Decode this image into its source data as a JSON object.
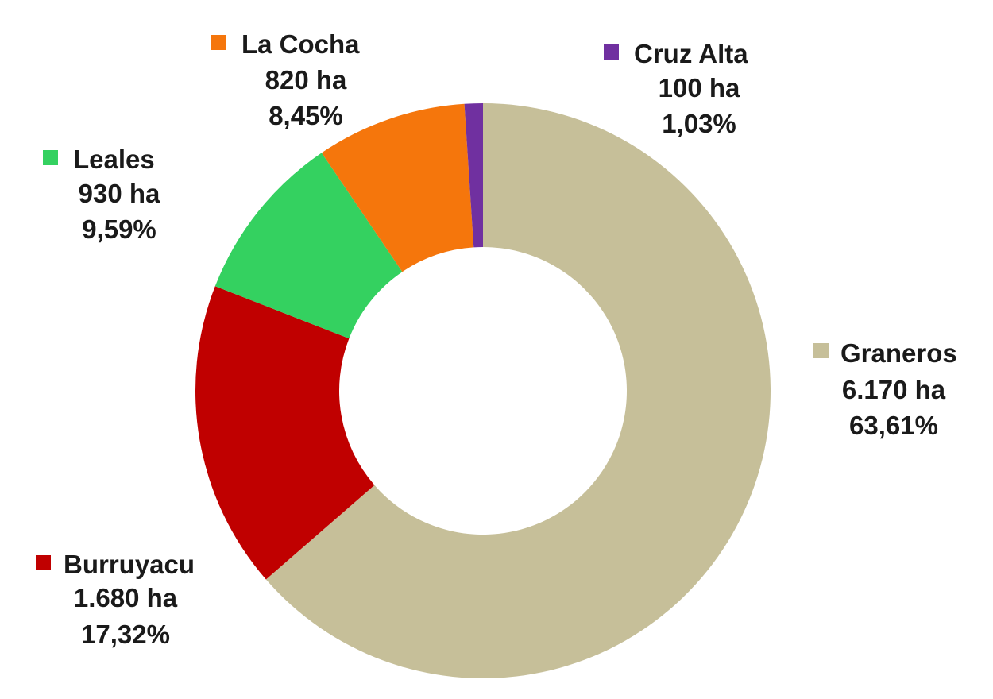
{
  "chart_data": {
    "type": "pie",
    "variant": "donut",
    "title": "",
    "legend": "none",
    "slices": [
      {
        "name": "Graneros",
        "value_label": "6.170 ha",
        "value": 6170,
        "percent_label": "63,61%",
        "percent": 63.61,
        "color": "#c6bf99"
      },
      {
        "name": "Burruyacu",
        "value_label": "1.680 ha",
        "value": 1680,
        "percent_label": "17,32%",
        "percent": 17.32,
        "color": "#c00000"
      },
      {
        "name": "Leales",
        "value_label": "930 ha",
        "value": 930,
        "percent_label": "9,59%",
        "percent": 9.59,
        "color": "#34d160"
      },
      {
        "name": "La Cocha",
        "value_label": "820 ha",
        "value": 820,
        "percent_label": "8,45%",
        "percent": 8.45,
        "color": "#f5760c"
      },
      {
        "name": "Cruz Alta",
        "value_label": "100 ha",
        "value": 100,
        "percent_label": "1,03%",
        "percent": 1.03,
        "color": "#7030a0"
      }
    ]
  }
}
